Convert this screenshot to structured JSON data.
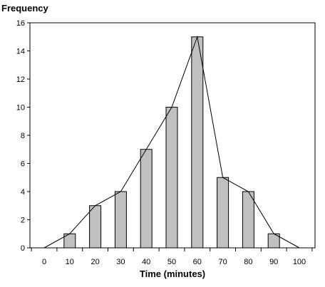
{
  "chart_data": {
    "type": "bar",
    "ylabel": "Frequency",
    "xlabel": "Time (minutes)",
    "categories": [
      10,
      20,
      30,
      40,
      50,
      60,
      70,
      80,
      90
    ],
    "values": [
      1,
      3,
      4,
      7,
      10,
      15,
      5,
      4,
      1
    ],
    "polygon": {
      "x": [
        0,
        10,
        20,
        30,
        40,
        50,
        60,
        70,
        80,
        90,
        100
      ],
      "y": [
        0,
        1,
        3,
        4,
        7,
        10,
        15,
        5,
        4,
        1,
        0
      ]
    },
    "x_ticks": [
      0,
      10,
      20,
      30,
      40,
      50,
      60,
      70,
      80,
      90,
      100
    ],
    "y_ticks": [
      0,
      2,
      4,
      6,
      8,
      10,
      12,
      14,
      16
    ],
    "xlim": [
      0,
      100
    ],
    "ylim": [
      0,
      16
    ],
    "grid": false,
    "colors": {
      "bar_fill": "#c0c0c0",
      "bar_stroke": "#000000",
      "line": "#000000",
      "axis": "#000000"
    }
  }
}
